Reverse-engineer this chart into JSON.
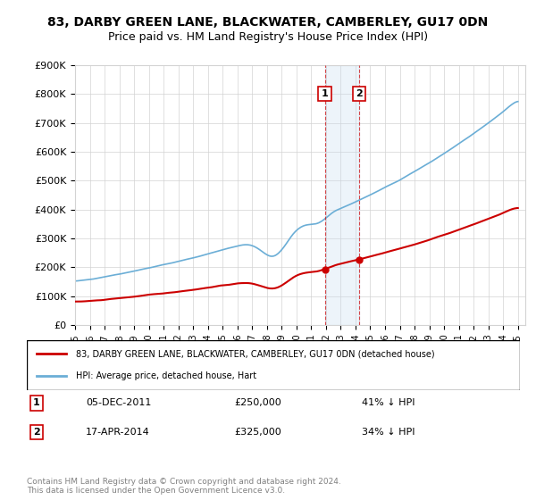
{
  "title": "83, DARBY GREEN LANE, BLACKWATER, CAMBERLEY, GU17 0DN",
  "subtitle": "Price paid vs. HM Land Registry's House Price Index (HPI)",
  "legend_entry1": "83, DARBY GREEN LANE, BLACKWATER, CAMBERLEY, GU17 0DN (detached house)",
  "legend_entry2": "HPI: Average price, detached house, Hart",
  "transaction1_date": "05-DEC-2011",
  "transaction1_price": 250000,
  "transaction1_pct": "41% ↓ HPI",
  "transaction2_date": "17-APR-2014",
  "transaction2_price": 325000,
  "transaction2_pct": "34% ↓ HPI",
  "footer": "Contains HM Land Registry data © Crown copyright and database right 2024.\nThis data is licensed under the Open Government Licence v3.0.",
  "hpi_color": "#6baed6",
  "price_color": "#cc0000",
  "transaction_color": "#cc0000",
  "highlight_color": "#c6dbef",
  "ylim": [
    0,
    900000
  ],
  "yticks": [
    0,
    100000,
    200000,
    300000,
    400000,
    500000,
    600000,
    700000,
    800000,
    900000
  ]
}
